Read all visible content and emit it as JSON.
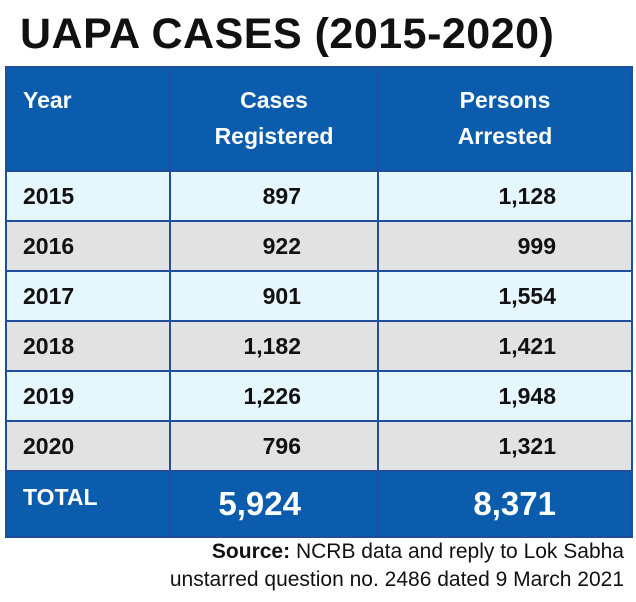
{
  "title": "UAPA CASES (2015-2020)",
  "chart_data": {
    "type": "table",
    "columns": [
      "Year",
      "Cases Registered",
      "Persons Arrested"
    ],
    "header_lines": [
      [
        "Year"
      ],
      [
        "Cases",
        "Registered"
      ],
      [
        "Persons",
        "Arrested"
      ]
    ],
    "rows": [
      {
        "year": "2015",
        "cases": "897",
        "arrested": "1,128"
      },
      {
        "year": "2016",
        "cases": "922",
        "arrested": "999"
      },
      {
        "year": "2017",
        "cases": "901",
        "arrested": "1,554"
      },
      {
        "year": "2018",
        "cases": "1,182",
        "arrested": "1,421"
      },
      {
        "year": "2019",
        "cases": "1,226",
        "arrested": "1,948"
      },
      {
        "year": "2020",
        "cases": "796",
        "arrested": "1,321"
      }
    ],
    "total": {
      "label": "TOTAL",
      "cases": "5,924",
      "arrested": "8,371"
    }
  },
  "source": {
    "label": "Source:",
    "line1": "NCRB data and reply to Lok Sabha",
    "line2": "unstarred question no. 2486 dated 9 March 2021"
  },
  "colors": {
    "header_blue": "#0b5cad",
    "row_light": "#e6f6fd",
    "row_grey": "#e2e2e2"
  }
}
